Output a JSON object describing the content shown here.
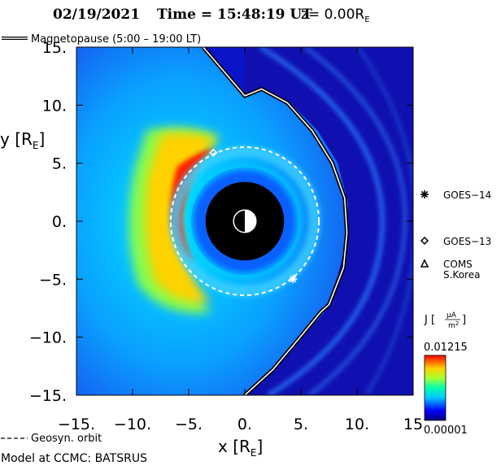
{
  "chart_data": {
    "type": "heatmap",
    "title_date": "02/19/2021",
    "title_time_label": "Time = 15:48:19 UT",
    "title_z_label": "z= 0.00R",
    "title_z_sub": "E",
    "xlabel": "x [R",
    "xlabel_sub": "E",
    "xlabel_close": "]",
    "ylabel": "y [R",
    "ylabel_sub": "E",
    "ylabel_close": "]",
    "xlim": [
      -15,
      15
    ],
    "ylim": [
      -15,
      15
    ],
    "x_ticks": [
      {
        "value": -15,
        "label": "−15."
      },
      {
        "value": -10,
        "label": "−10."
      },
      {
        "value": -5,
        "label": "−5."
      },
      {
        "value": 0,
        "label": "0."
      },
      {
        "value": 5,
        "label": "5."
      },
      {
        "value": 10,
        "label": "10."
      },
      {
        "value": 15,
        "label": "15"
      }
    ],
    "y_ticks": [
      {
        "value": 15,
        "label": "15."
      },
      {
        "value": 10,
        "label": "10."
      },
      {
        "value": 5,
        "label": "5."
      },
      {
        "value": 0,
        "label": "0."
      },
      {
        "value": -5,
        "label": "−5."
      },
      {
        "value": -10,
        "label": "−10."
      },
      {
        "value": -15,
        "label": "−15."
      }
    ],
    "legend_magnetopause": "Magnetopause (5:00 – 19:00 LT)",
    "legend_geosyn": "Geosyn. orbit",
    "geosync_radius": 6.6,
    "earth_radius": 3.5,
    "magnetopause": [
      [
        -3.7,
        15.0
      ],
      [
        0.0,
        10.8
      ],
      [
        1.5,
        11.4
      ],
      [
        3.8,
        10.2
      ],
      [
        6.0,
        7.8
      ],
      [
        7.8,
        5.0
      ],
      [
        8.9,
        2.0
      ],
      [
        9.1,
        -1.0
      ],
      [
        8.8,
        -4.0
      ],
      [
        7.5,
        -7.2
      ],
      [
        6.8,
        -7.8
      ],
      [
        4.5,
        -10.5
      ],
      [
        2.5,
        -12.8
      ],
      [
        0.0,
        -15.0
      ]
    ],
    "satellites": [
      {
        "name": "GOES−14",
        "symbol": "asterisk",
        "x": 4.3,
        "y": -5.0
      },
      {
        "name": "GOES−13",
        "symbol": "diamond",
        "x": -2.8,
        "y": 5.9
      },
      {
        "name": "COMS",
        "name2": "S.Korea",
        "symbol": "triangle",
        "x": null,
        "y": null
      }
    ],
    "colorbar": {
      "label": "J [",
      "label_unit_num": "μA",
      "label_unit_den": "m",
      "label_unit_exp": "2",
      "label_close": "]",
      "max_label": "0.01215",
      "min_label": "0.00001",
      "vmax": 0.01215,
      "vmin": 1e-05
    },
    "footer": "Model at CCMC: BATSRUS"
  }
}
